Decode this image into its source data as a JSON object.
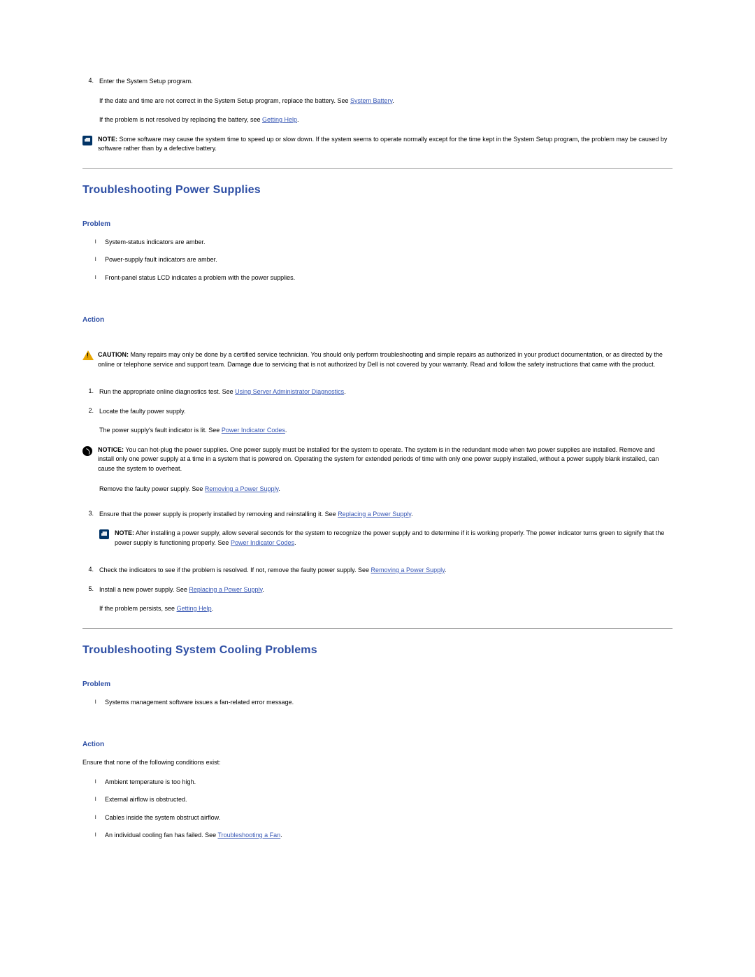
{
  "colors": {
    "heading": "#2d4ea4",
    "link": "#3656b4",
    "body_text": "#000000",
    "hr": "#999999",
    "note_icon_bg": "#003366",
    "caution_icon": "#e8a500",
    "notice_icon_bg": "#000000",
    "background": "#ffffff"
  },
  "top_step": {
    "num": "4.",
    "line1": "Enter the System Setup program.",
    "line2_pre": "If the date and time are not correct in the System Setup program, replace the battery. See ",
    "line2_link": "System Battery",
    "line2_post": ".",
    "line3_pre": "If the problem is not resolved by replacing the battery, see ",
    "line3_link": "Getting Help",
    "line3_post": "."
  },
  "top_note": {
    "label": "NOTE:",
    "text": " Some software may cause the system time to speed up or slow down. If the system seems to operate normally except for the time kept in the System Setup program, the problem may be caused by software rather than by a defective battery."
  },
  "ps": {
    "title": "Troubleshooting Power Supplies",
    "problem_label": "Problem",
    "problems": [
      "System-status indicators are amber.",
      "Power-supply fault indicators are amber.",
      "Front-panel status LCD indicates a problem with the power supplies."
    ],
    "action_label": "Action",
    "caution": {
      "label": "CAUTION:",
      "text": " Many repairs may only be done by a certified service technician. You should only perform troubleshooting and simple repairs as authorized in your product documentation, or as directed by the online or telephone service and support team. Damage due to servicing that is not authorized by Dell is not covered by your warranty. Read and follow the safety instructions that came with the product."
    },
    "step1": {
      "num": "1.",
      "pre": "Run the appropriate online diagnostics test. See ",
      "link": "Using Server Administrator Diagnostics",
      "post": "."
    },
    "step2": {
      "num": "2.",
      "line1": "Locate the faulty power supply.",
      "line2_pre": "The power supply's fault indicator is lit. See ",
      "line2_link": "Power Indicator Codes",
      "line2_post": "."
    },
    "notice": {
      "label": "NOTICE:",
      "text": " You can hot-plug the power supplies. One power supply must be installed for the system to operate. The system is in the redundant mode when two power supplies are installed. Remove and install only one power supply at a time in a system that is powered on. Operating the system for extended periods of time with only one power supply installed, without a power supply blank installed, can cause the system to overheat."
    },
    "after_notice": {
      "pre": "Remove the faulty power supply. See ",
      "link": "Removing a Power Supply",
      "post": "."
    },
    "step3": {
      "num": "3.",
      "pre": "Ensure that the power supply is properly installed by removing and reinstalling it. See ",
      "link": "Replacing a Power Supply",
      "post": "."
    },
    "step3_note": {
      "label": "NOTE:",
      "pre": " After installing a power supply, allow several seconds for the system to recognize the power supply and to determine if it is working properly. The power indicator turns green to signify that the power supply is functioning properly. See ",
      "link": "Power Indicator Codes",
      "post": "."
    },
    "step4": {
      "num": "4.",
      "pre": "Check the indicators to see if the problem is resolved. If not, remove the faulty power supply. See ",
      "link": "Removing a Power Supply",
      "post": "."
    },
    "step5": {
      "num": "5.",
      "pre": "Install a new power supply. See ",
      "link": "Replacing a Power Supply",
      "post": ".",
      "line2_pre": "If the problem persists, see ",
      "line2_link": "Getting Help",
      "line2_post": "."
    }
  },
  "cool": {
    "title": "Troubleshooting System Cooling Problems",
    "problem_label": "Problem",
    "problems": [
      "Systems management software issues a fan-related error message."
    ],
    "action_label": "Action",
    "intro": "Ensure that none of the following conditions exist:",
    "conditions": [
      {
        "text": "Ambient temperature is too high."
      },
      {
        "text": "External airflow is obstructed."
      },
      {
        "text": "Cables inside the system obstruct airflow."
      }
    ],
    "cond4": {
      "pre": "An individual cooling fan has failed. See ",
      "link": "Troubleshooting a Fan",
      "post": "."
    }
  }
}
